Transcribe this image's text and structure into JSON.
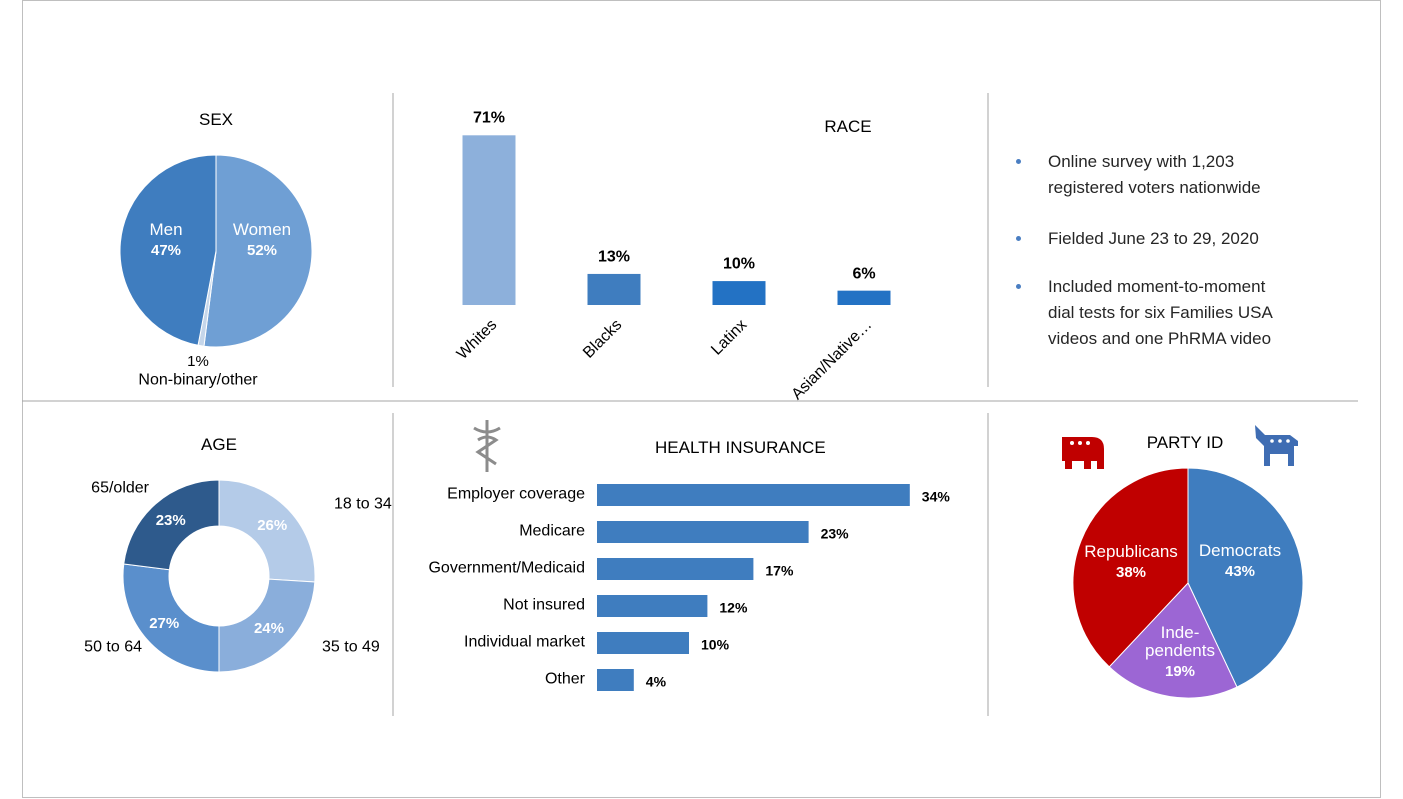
{
  "chart_data": [
    {
      "type": "pie",
      "title": "SEX",
      "categories": [
        "Women",
        "Non-binary/other",
        "Men"
      ],
      "values": [
        52,
        1,
        47
      ],
      "value_labels": [
        "52%",
        "1%",
        "47%"
      ],
      "colors": [
        "#6f9fd4",
        "#c5d6ea",
        "#3f7dbf"
      ]
    },
    {
      "type": "bar",
      "title": "RACE",
      "categories": [
        "Whites",
        "Blacks",
        "Latinx",
        "Asian/Native…"
      ],
      "values": [
        71,
        13,
        10,
        6
      ],
      "value_labels": [
        "71%",
        "13%",
        "10%",
        "6%"
      ],
      "colors": [
        "#8db0db",
        "#3f7dbf",
        "#2372c4",
        "#2372c4"
      ]
    },
    {
      "type": "donut",
      "title": "AGE",
      "categories": [
        "18 to 34",
        "35 to 49",
        "50 to 64",
        "65/older"
      ],
      "values": [
        26,
        24,
        27,
        23
      ],
      "value_labels": [
        "26%",
        "24%",
        "27%",
        "23%"
      ],
      "colors": [
        "#b4cbe8",
        "#8aaedb",
        "#5a8fcc",
        "#2e5a8c"
      ]
    },
    {
      "type": "hbar",
      "title": "HEALTH INSURANCE",
      "categories": [
        "Employer coverage",
        "Medicare",
        "Government/Medicaid",
        "Not insured",
        "Individual market",
        "Other"
      ],
      "values": [
        34,
        23,
        17,
        12,
        10,
        4
      ],
      "value_labels": [
        "34%",
        "23%",
        "17%",
        "12%",
        "10%",
        "4%"
      ],
      "color": "#3f7dbf"
    },
    {
      "type": "pie",
      "title": "PARTY ID",
      "categories": [
        "Democrats",
        "Inde-\npendents",
        "Republicans"
      ],
      "values": [
        43,
        19,
        38
      ],
      "value_labels": [
        "43%",
        "19%",
        "38%"
      ],
      "colors": [
        "#3f7dbf",
        "#9c66d4",
        "#c00000"
      ]
    }
  ],
  "bullets": [
    [
      "Online survey with 1,203",
      "registered voters nationwide"
    ],
    [
      "Fielded June 23 to 29, 2020"
    ],
    [
      "Included moment-to-moment",
      "dial tests for six Families USA",
      "videos and one PhRMA video"
    ]
  ]
}
